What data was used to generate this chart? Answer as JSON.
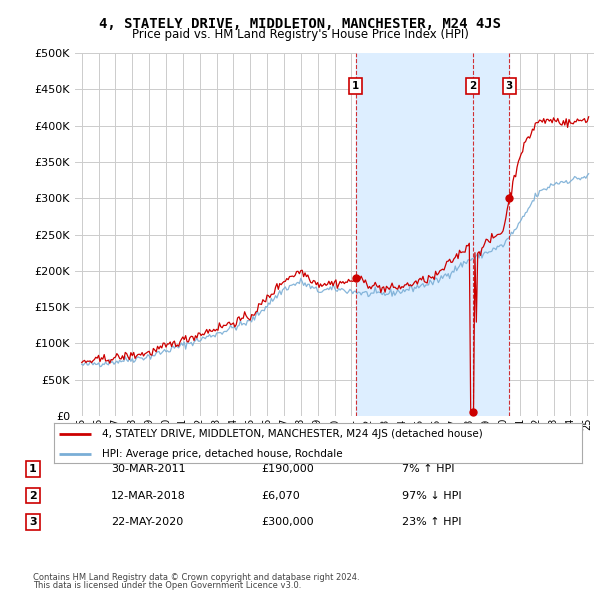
{
  "title": "4, STATELY DRIVE, MIDDLETON, MANCHESTER, M24 4JS",
  "subtitle": "Price paid vs. HM Land Registry's House Price Index (HPI)",
  "legend_line1": "4, STATELY DRIVE, MIDDLETON, MANCHESTER, M24 4JS (detached house)",
  "legend_line2": "HPI: Average price, detached house, Rochdale",
  "footer1": "Contains HM Land Registry data © Crown copyright and database right 2024.",
  "footer2": "This data is licensed under the Open Government Licence v3.0.",
  "transactions": [
    {
      "num": 1,
      "date": "30-MAR-2011",
      "price": "£190,000",
      "change": "7% ↑ HPI",
      "year": 2011.25
    },
    {
      "num": 2,
      "date": "12-MAR-2018",
      "price": "£6,070",
      "change": "97% ↓ HPI",
      "year": 2018.19
    },
    {
      "num": 3,
      "date": "22-MAY-2020",
      "price": "£300,000",
      "change": "23% ↑ HPI",
      "year": 2020.38
    }
  ],
  "red_color": "#cc0000",
  "blue_color": "#7aaed6",
  "shade_color": "#ddeeff",
  "vline_color": "#cc0000",
  "grid_color": "#cccccc",
  "bg_color": "#ffffff"
}
